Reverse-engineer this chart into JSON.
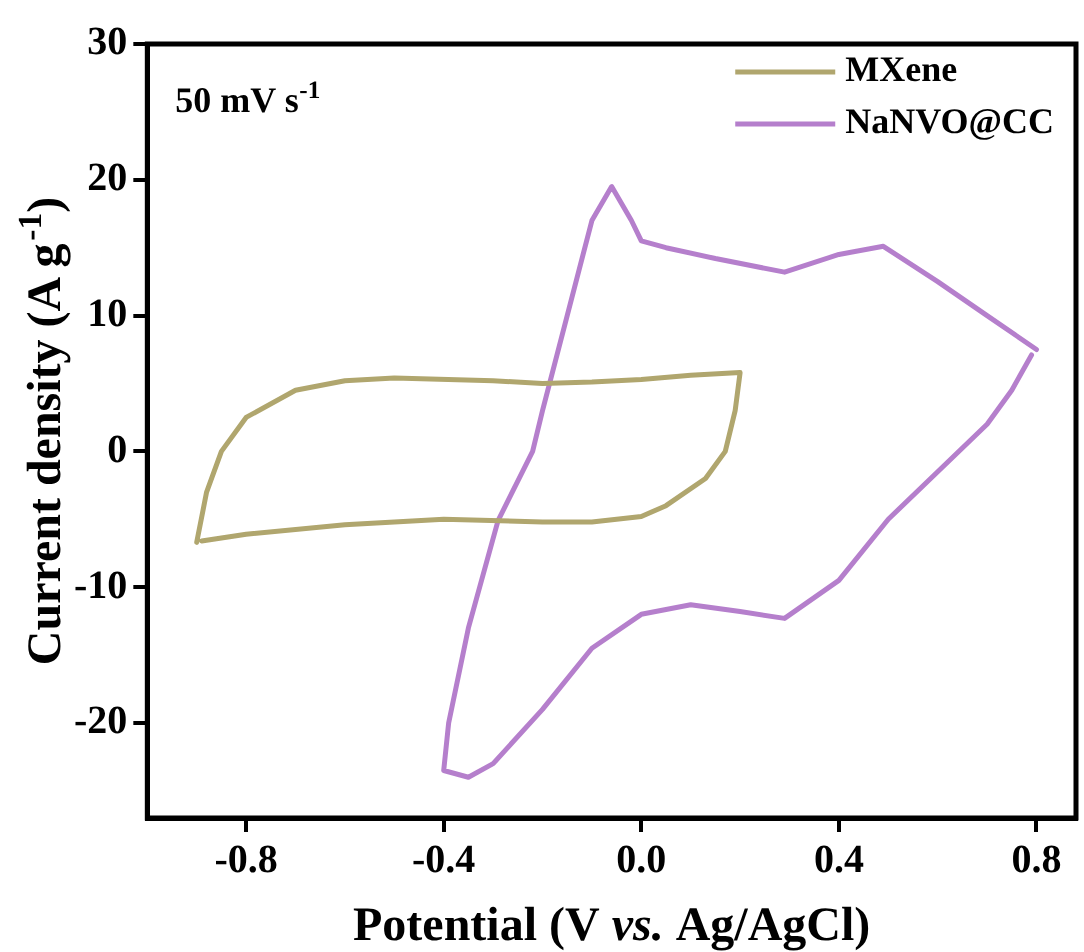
{
  "chart_data": {
    "type": "line",
    "xlabel": "Potential (V vs. Ag/AgCl)",
    "ylabel": "Current density (A g$^{-1}$)",
    "annotations": [
      "50 mV s$^{-1}$"
    ],
    "xlim": [
      -1.0,
      0.88
    ],
    "ylim": [
      -27,
      30
    ],
    "xticks": [
      {
        "value": -0.8,
        "label": "-0.8"
      },
      {
        "value": -0.4,
        "label": "-0.4"
      },
      {
        "value": 0,
        "label": "0.0"
      },
      {
        "value": 0.4,
        "label": "0.4"
      },
      {
        "value": 0.8,
        "label": "0.8"
      }
    ],
    "yticks": [
      -20,
      -10,
      0,
      10,
      20,
      30
    ],
    "grid": false,
    "legend": "top right",
    "marker": "none",
    "line_style": "solid",
    "series": [
      {
        "name": "MXene",
        "color": "#b0a66e",
        "x": [
          -0.9,
          -0.88,
          -0.85,
          -0.8,
          -0.7,
          -0.6,
          -0.5,
          -0.3,
          -0.2,
          -0.1,
          0.0,
          0.1,
          0.2,
          0.19,
          0.17,
          0.13,
          0.05,
          0.0,
          -0.1,
          -0.2,
          -0.4,
          -0.6,
          -0.8,
          -0.89
        ],
        "values": [
          -6.7,
          -3,
          0,
          2.5,
          4.5,
          5.2,
          5.4,
          5.2,
          5.0,
          5.1,
          5.3,
          5.6,
          5.8,
          3,
          0,
          -2,
          -4,
          -4.8,
          -5.2,
          -5.2,
          -5.0,
          -5.4,
          -6.1,
          -6.6
        ]
      },
      {
        "name": "NaNVO@CC",
        "color": "#b57fcc",
        "x": [
          0.8,
          0.7,
          0.6,
          0.49,
          0.4,
          0.29,
          0.15,
          0.05,
          0.0,
          -0.02,
          -0.06,
          -0.1,
          -0.15,
          -0.2,
          -0.22,
          -0.29,
          -0.35,
          -0.39,
          -0.4,
          -0.35,
          -0.3,
          -0.2,
          -0.1,
          0.0,
          0.1,
          0.2,
          0.29,
          0.4,
          0.5,
          0.6,
          0.7,
          0.75,
          0.79
        ],
        "values": [
          7.5,
          10,
          12.5,
          15.1,
          14.5,
          13.2,
          14.2,
          15.0,
          15.5,
          17,
          19.5,
          17,
          10,
          3,
          0,
          -5.1,
          -13,
          -20,
          -23.5,
          -24,
          -23,
          -19,
          -14.5,
          -12,
          -11.3,
          -11.8,
          -12.3,
          -9.5,
          -5,
          -1.5,
          2,
          4.5,
          7.1
        ]
      }
    ]
  }
}
